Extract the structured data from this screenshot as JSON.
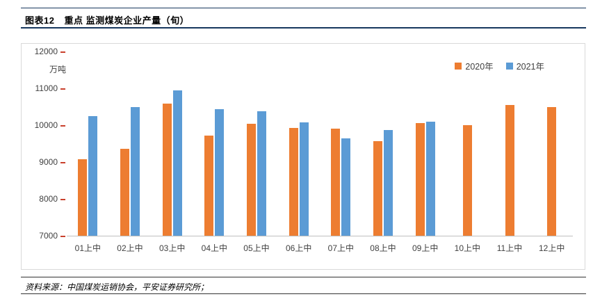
{
  "header": {
    "figure_no": "图表12",
    "title": "重点 监测煤炭企业产量（旬）"
  },
  "footer": {
    "source": "资料来源：中国煤炭运销协会，平安证券研究所；"
  },
  "colors": {
    "series_2020": "#ED7D31",
    "series_2021": "#5B9BD5",
    "tick_mark": "#C9402C",
    "header_rule": "#17375E"
  },
  "chart_data": {
    "type": "bar",
    "title": "重点 监测煤炭企业产量（旬）",
    "unit_label": "万吨",
    "categories": [
      "01上中",
      "02上中",
      "03上中",
      "04上中",
      "05上中",
      "06上中",
      "07上中",
      "08上中",
      "09上中",
      "10上中",
      "11上中",
      "12上中"
    ],
    "series": [
      {
        "name": "2020年",
        "color": "#ED7D31",
        "values": [
          9070,
          9350,
          10580,
          9720,
          10040,
          9930,
          9900,
          9560,
          10050,
          10000,
          10540,
          10490
        ]
      },
      {
        "name": "2021年",
        "color": "#5B9BD5",
        "values": [
          10250,
          10490,
          10950,
          10430,
          10370,
          10080,
          9640,
          9860,
          10090,
          null,
          null,
          null
        ]
      }
    ],
    "ylim": [
      7000,
      12000
    ],
    "yticks": [
      7000,
      8000,
      9000,
      10000,
      11000,
      12000
    ],
    "grid": false,
    "legend_position": "top-right"
  }
}
